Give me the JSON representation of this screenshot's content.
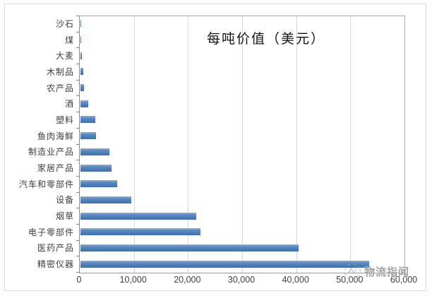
{
  "colors": {
    "bar": "#4f81bd",
    "grid": "#d7d7d7",
    "axis": "#8a8a8a",
    "label_text": "#3d3d3d",
    "title_text": "#141414",
    "watermark_text": "#8d8d8d"
  },
  "watermark": {
    "text": "物流指闻",
    "logo": "scribble-badge-logo"
  },
  "chart_data": {
    "type": "bar",
    "orientation": "horizontal",
    "title": "每吨价值（美元）",
    "xlabel": "",
    "ylabel": "",
    "grid": true,
    "legend": "none",
    "xlim": [
      0,
      60000
    ],
    "xticks": [
      "0",
      "10,000",
      "20,000",
      "30,000",
      "40,000",
      "50,000",
      "60,000"
    ],
    "xtick_values": [
      0,
      10000,
      20000,
      30000,
      40000,
      50000,
      60000
    ],
    "categories": [
      "沙石",
      "煤",
      "大麦",
      "木制品",
      "农产品",
      "酒",
      "塑料",
      "鱼肉海鲜",
      "制造业产品",
      "家居产品",
      "汽车和零部件",
      "设备",
      "烟草",
      "电子零部件",
      "医药产品",
      "精密仪器"
    ],
    "values": [
      100,
      120,
      250,
      500,
      650,
      1500,
      2800,
      2900,
      5300,
      5800,
      6800,
      9400,
      21500,
      22200,
      40400,
      53500
    ]
  }
}
